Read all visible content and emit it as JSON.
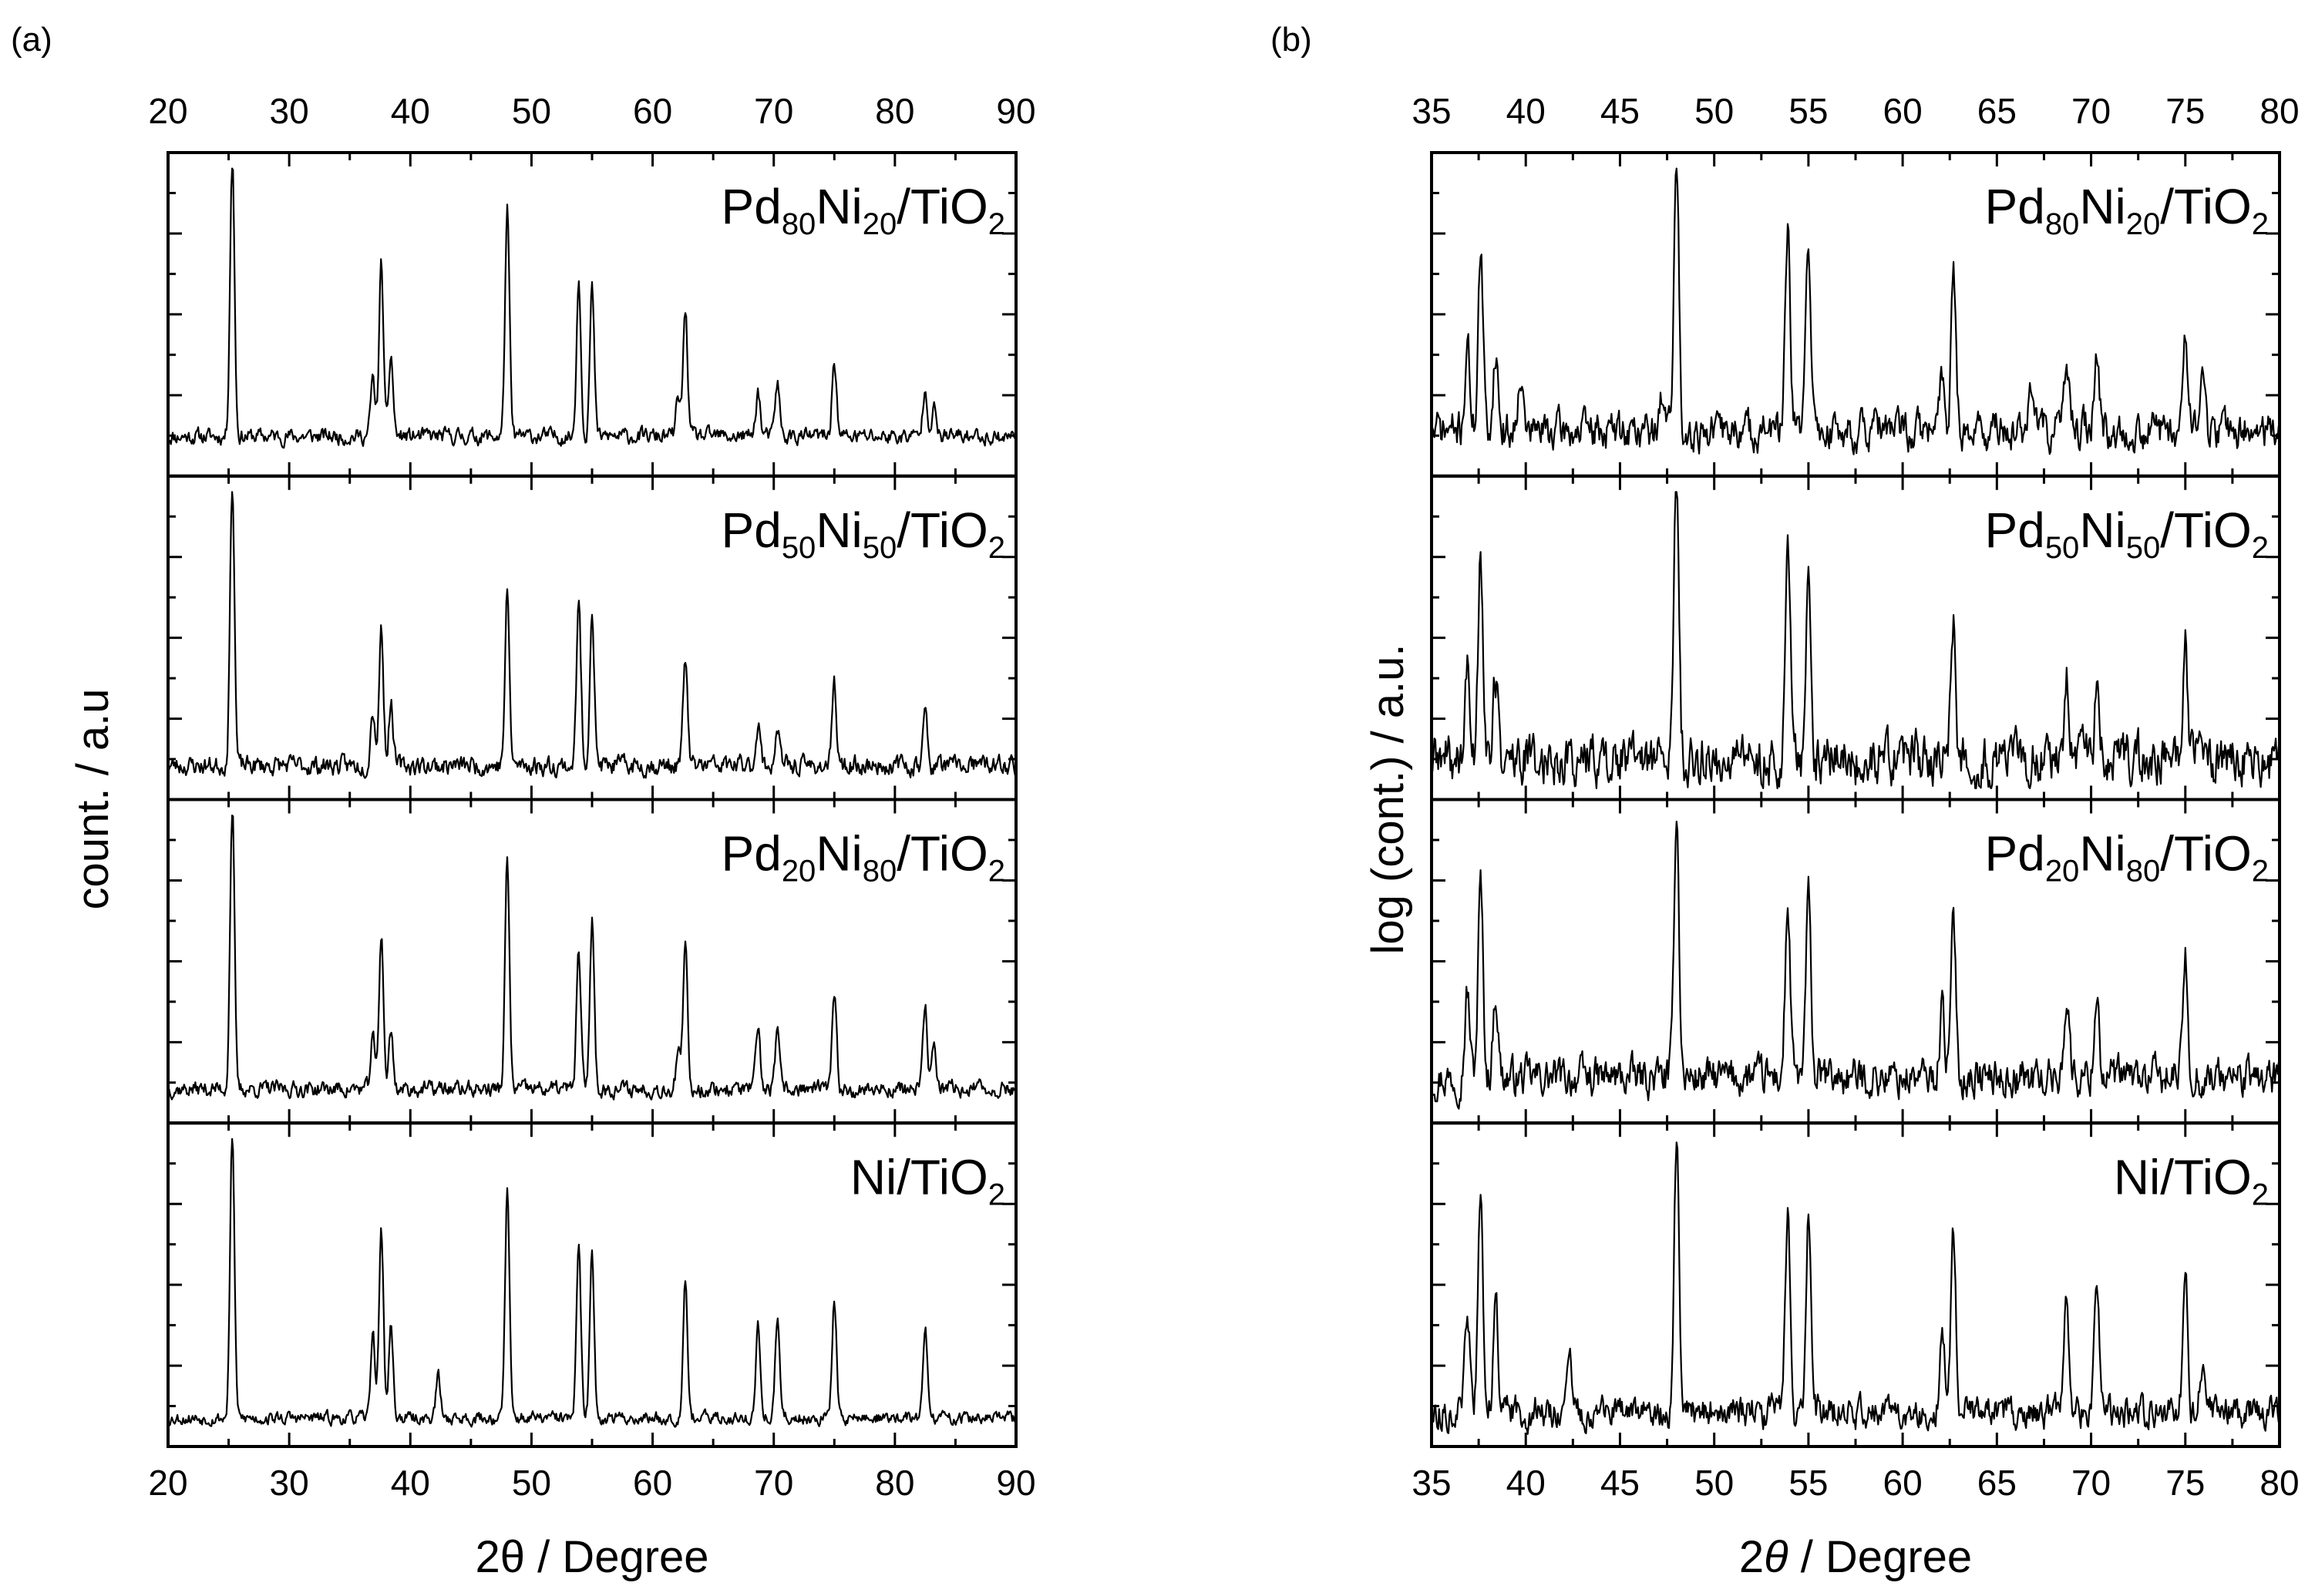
{
  "chart_data": [
    {
      "panel": "(a)",
      "type": "line",
      "xlabel": "2θ / Degree",
      "ylabel": "count. / a.u",
      "xlim": [
        20,
        90
      ],
      "xticks": [
        20,
        30,
        40,
        50,
        60,
        70,
        80,
        90
      ],
      "xtick_labels": [
        "20",
        "30",
        "40",
        "50",
        "60",
        "70",
        "80",
        "90"
      ],
      "series": [
        {
          "name": "Pd80Ni20/TiO2",
          "label": {
            "pd": "Pd",
            "pd_sub": "80",
            "ni": "Ni",
            "ni_sub": "20",
            "support": "/TiO",
            "o_sub": "2"
          },
          "baseline": 0.08,
          "noise": 0.05,
          "seed": 11,
          "peaks": [
            [
              25.3,
              1.0
            ],
            [
              36.9,
              0.2
            ],
            [
              37.6,
              0.6
            ],
            [
              38.4,
              0.28
            ],
            [
              48.0,
              0.8
            ],
            [
              53.9,
              0.55
            ],
            [
              55.0,
              0.52
            ],
            [
              62.1,
              0.13
            ],
            [
              62.7,
              0.45
            ],
            [
              68.7,
              0.16
            ],
            [
              70.3,
              0.19
            ],
            [
              75.0,
              0.27
            ],
            [
              82.5,
              0.18
            ],
            [
              83.2,
              0.1
            ]
          ]
        },
        {
          "name": "Pd50Ni50/TiO2",
          "label": {
            "pd": "Pd",
            "pd_sub": "50",
            "ni": "Ni",
            "ni_sub": "50",
            "support": "/TiO",
            "o_sub": "2"
          },
          "baseline": 0.06,
          "noise": 0.06,
          "seed": 23,
          "peaks": [
            [
              25.3,
              1.0
            ],
            [
              36.9,
              0.2
            ],
            [
              37.6,
              0.48
            ],
            [
              38.4,
              0.22
            ],
            [
              48.0,
              0.6
            ],
            [
              53.9,
              0.57
            ],
            [
              55.0,
              0.55
            ],
            [
              62.7,
              0.38
            ],
            [
              68.7,
              0.15
            ],
            [
              70.3,
              0.13
            ],
            [
              75.0,
              0.27
            ],
            [
              82.5,
              0.18
            ]
          ]
        },
        {
          "name": "Pd20Ni80/TiO2",
          "label": {
            "pd": "Pd",
            "pd_sub": "20",
            "ni": "Ni",
            "ni_sub": "80",
            "support": "/TiO",
            "o_sub": "2"
          },
          "baseline": 0.06,
          "noise": 0.05,
          "seed": 37,
          "peaks": [
            [
              25.3,
              1.0
            ],
            [
              36.9,
              0.18
            ],
            [
              37.6,
              0.55
            ],
            [
              38.4,
              0.2
            ],
            [
              48.0,
              0.8
            ],
            [
              53.9,
              0.48
            ],
            [
              55.0,
              0.6
            ],
            [
              62.1,
              0.12
            ],
            [
              62.7,
              0.5
            ],
            [
              68.7,
              0.2
            ],
            [
              70.3,
              0.19
            ],
            [
              75.0,
              0.32
            ],
            [
              82.5,
              0.28
            ],
            [
              83.2,
              0.15
            ]
          ]
        },
        {
          "name": "Ni/TiO2",
          "label": {
            "pd": "",
            "pd_sub": "",
            "ni": "Ni",
            "ni_sub": "",
            "support": "/TiO",
            "o_sub": "2"
          },
          "baseline": 0.04,
          "noise": 0.04,
          "seed": 53,
          "peaks": [
            [
              25.3,
              1.0
            ],
            [
              36.9,
              0.3
            ],
            [
              37.6,
              0.67
            ],
            [
              38.4,
              0.32
            ],
            [
              42.3,
              0.15
            ],
            [
              48.0,
              0.8
            ],
            [
              53.9,
              0.6
            ],
            [
              55.0,
              0.58
            ],
            [
              62.7,
              0.5
            ],
            [
              68.7,
              0.32
            ],
            [
              70.3,
              0.35
            ],
            [
              75.0,
              0.42
            ],
            [
              82.5,
              0.32
            ]
          ]
        }
      ]
    },
    {
      "panel": "(b)",
      "type": "line",
      "xlabel_italic": "θ",
      "xlabel_prefix": "2",
      "xlabel_suffix": " / Degree",
      "ylabel": "log (cont.) / a.u.",
      "xlim": [
        35,
        80
      ],
      "xticks": [
        35,
        40,
        45,
        50,
        55,
        60,
        65,
        70,
        75,
        80
      ],
      "xtick_labels": [
        "35",
        "40",
        "45",
        "50",
        "55",
        "60",
        "65",
        "70",
        "75",
        "80"
      ],
      "series": [
        {
          "name": "Pd80Ni20/TiO2",
          "label": {
            "pd": "Pd",
            "pd_sub": "80",
            "ni": "Ni",
            "ni_sub": "20",
            "support": "/TiO",
            "o_sub": "2"
          },
          "baseline": 0.1,
          "noise": 0.12,
          "seed": 71,
          "peaks": [
            [
              36.9,
              0.3
            ],
            [
              37.6,
              0.62
            ],
            [
              38.4,
              0.28
            ],
            [
              39.7,
              0.22
            ],
            [
              47.3,
              0.15
            ],
            [
              48.0,
              0.95
            ],
            [
              53.9,
              0.68
            ],
            [
              55.0,
              0.68
            ],
            [
              62.1,
              0.2
            ],
            [
              62.7,
              0.55
            ],
            [
              66.8,
              0.15
            ],
            [
              68.7,
              0.25
            ],
            [
              70.3,
              0.25
            ],
            [
              75.0,
              0.38
            ],
            [
              75.9,
              0.2
            ]
          ]
        },
        {
          "name": "Pd50Ni50/TiO2",
          "label": {
            "pd": "Pd",
            "pd_sub": "50",
            "ni": "Ni",
            "ni_sub": "50",
            "support": "/TiO",
            "o_sub": "2"
          },
          "baseline": 0.08,
          "noise": 0.16,
          "seed": 89,
          "peaks": [
            [
              36.9,
              0.3
            ],
            [
              37.6,
              0.75
            ],
            [
              38.4,
              0.28
            ],
            [
              48.0,
              1.0
            ],
            [
              53.9,
              0.7
            ],
            [
              55.0,
              0.63
            ],
            [
              62.7,
              0.48
            ],
            [
              68.7,
              0.28
            ],
            [
              70.3,
              0.22
            ],
            [
              75.0,
              0.45
            ]
          ]
        },
        {
          "name": "Pd20Ni80/TiO2",
          "label": {
            "pd": "Pd",
            "pd_sub": "20",
            "ni": "Ni",
            "ni_sub": "80",
            "support": "/TiO",
            "o_sub": "2"
          },
          "baseline": 0.1,
          "noise": 0.12,
          "seed": 97,
          "peaks": [
            [
              36.9,
              0.3
            ],
            [
              37.6,
              0.68
            ],
            [
              38.4,
              0.3
            ],
            [
              48.0,
              0.95
            ],
            [
              53.9,
              0.6
            ],
            [
              55.0,
              0.63
            ],
            [
              62.1,
              0.25
            ],
            [
              62.7,
              0.55
            ],
            [
              68.7,
              0.3
            ],
            [
              70.3,
              0.3
            ],
            [
              75.0,
              0.42
            ]
          ]
        },
        {
          "name": "Ni/TiO2",
          "label": {
            "pd": "",
            "pd_sub": "",
            "ni": "Ni",
            "ni_sub": "",
            "support": "/TiO",
            "o_sub": "2"
          },
          "baseline": 0.06,
          "noise": 0.1,
          "seed": 113,
          "peaks": [
            [
              36.9,
              0.35
            ],
            [
              37.6,
              0.75
            ],
            [
              38.4,
              0.4
            ],
            [
              42.3,
              0.18
            ],
            [
              48.0,
              0.95
            ],
            [
              53.9,
              0.72
            ],
            [
              55.0,
              0.7
            ],
            [
              62.1,
              0.3
            ],
            [
              62.7,
              0.62
            ],
            [
              68.7,
              0.42
            ],
            [
              70.3,
              0.42
            ],
            [
              75.0,
              0.52
            ],
            [
              75.9,
              0.18
            ]
          ]
        }
      ]
    }
  ]
}
